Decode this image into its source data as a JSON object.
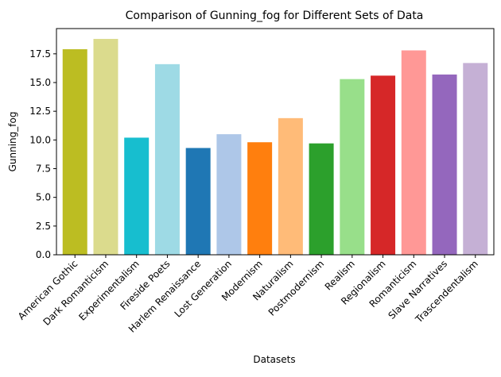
{
  "chart_data": {
    "type": "bar",
    "title": "Comparison of Gunning_fog for Different Sets of Data",
    "xlabel": "Datasets",
    "ylabel": "Gunning_fog",
    "ylim": [
      0,
      19.7
    ],
    "yticks": [
      "0.0",
      "2.5",
      "5.0",
      "7.5",
      "10.0",
      "12.5",
      "15.0",
      "17.5"
    ],
    "ytick_values": [
      0,
      2.5,
      5,
      7.5,
      10,
      12.5,
      15,
      17.5
    ],
    "grid": false,
    "categories": [
      "American Gothic",
      "Dark Romanticism",
      "Experimentalism",
      "Fireside Poets",
      "Harlem Renaissance",
      "Lost Generation",
      "Modernism",
      "Naturalism",
      "Postmodernism",
      "Realism",
      "Regionalism",
      "Romanticism",
      "Slave Narratives",
      "Trascendentalism"
    ],
    "values": [
      17.9,
      18.8,
      10.2,
      16.6,
      9.3,
      10.5,
      9.8,
      11.9,
      9.7,
      15.3,
      15.6,
      17.8,
      15.7,
      16.7
    ],
    "colors": [
      "#bcbd22",
      "#dbdb8d",
      "#17becf",
      "#9edae5",
      "#1f77b4",
      "#aec7e8",
      "#ff7f0e",
      "#ffbb78",
      "#2ca02c",
      "#98df8a",
      "#d62728",
      "#ff9896",
      "#9467bd",
      "#c5b0d5"
    ]
  }
}
